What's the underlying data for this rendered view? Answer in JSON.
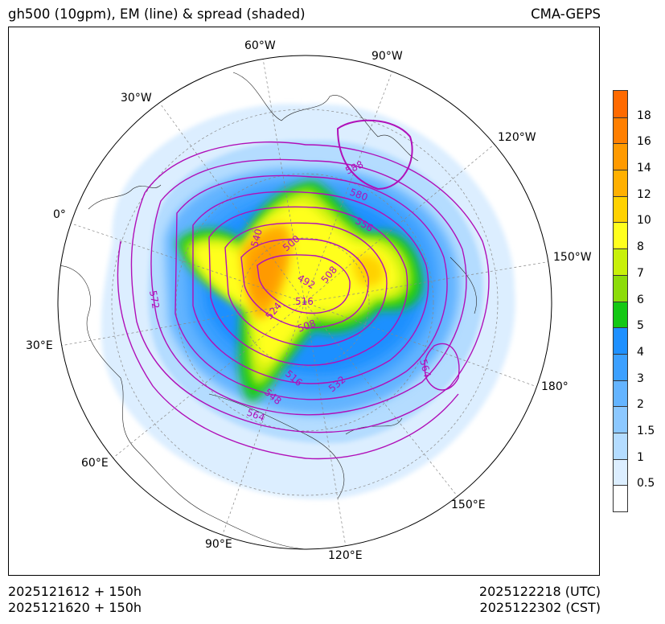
{
  "header": {
    "title_left": "gh500 (10gpm), EM (line) & spread (shaded)",
    "title_right": "CMA-GEPS"
  },
  "footer": {
    "init_utc": "2025121612 + 150h",
    "init_cst": "2025121620 + 150h",
    "valid_utc": "2025122218 (UTC)",
    "valid_cst": "2025122302 (CST)"
  },
  "map": {
    "projection": "north polar stereographic",
    "longitude_labels": [
      "60°W",
      "90°W",
      "30°W",
      "120°W",
      "0°",
      "150°W",
      "30°E",
      "180°",
      "60°E",
      "150°E",
      "90°E",
      "120°E"
    ],
    "contour_labels": [
      "588",
      "580",
      "556",
      "540",
      "500",
      "492",
      "508",
      "516",
      "524",
      "508",
      "572",
      "564",
      "516",
      "548",
      "532",
      "564"
    ],
    "contour_color": "#b010b8"
  },
  "colorbar": {
    "labels": [
      "18",
      "16",
      "14",
      "12",
      "10",
      "8",
      "7",
      "6",
      "5",
      "4",
      "3",
      "2",
      "1.5",
      "1",
      "0.5"
    ],
    "colors": [
      "#ff6a00",
      "#ff7f00",
      "#ff9a00",
      "#ffb000",
      "#ffd200",
      "#ffff1e",
      "#c8f00a",
      "#8cdc0a",
      "#14c814",
      "#1e90ff",
      "#3ca0ff",
      "#64b4ff",
      "#8cc8ff",
      "#b4dcff",
      "#dceeff",
      "#ffffff"
    ]
  }
}
